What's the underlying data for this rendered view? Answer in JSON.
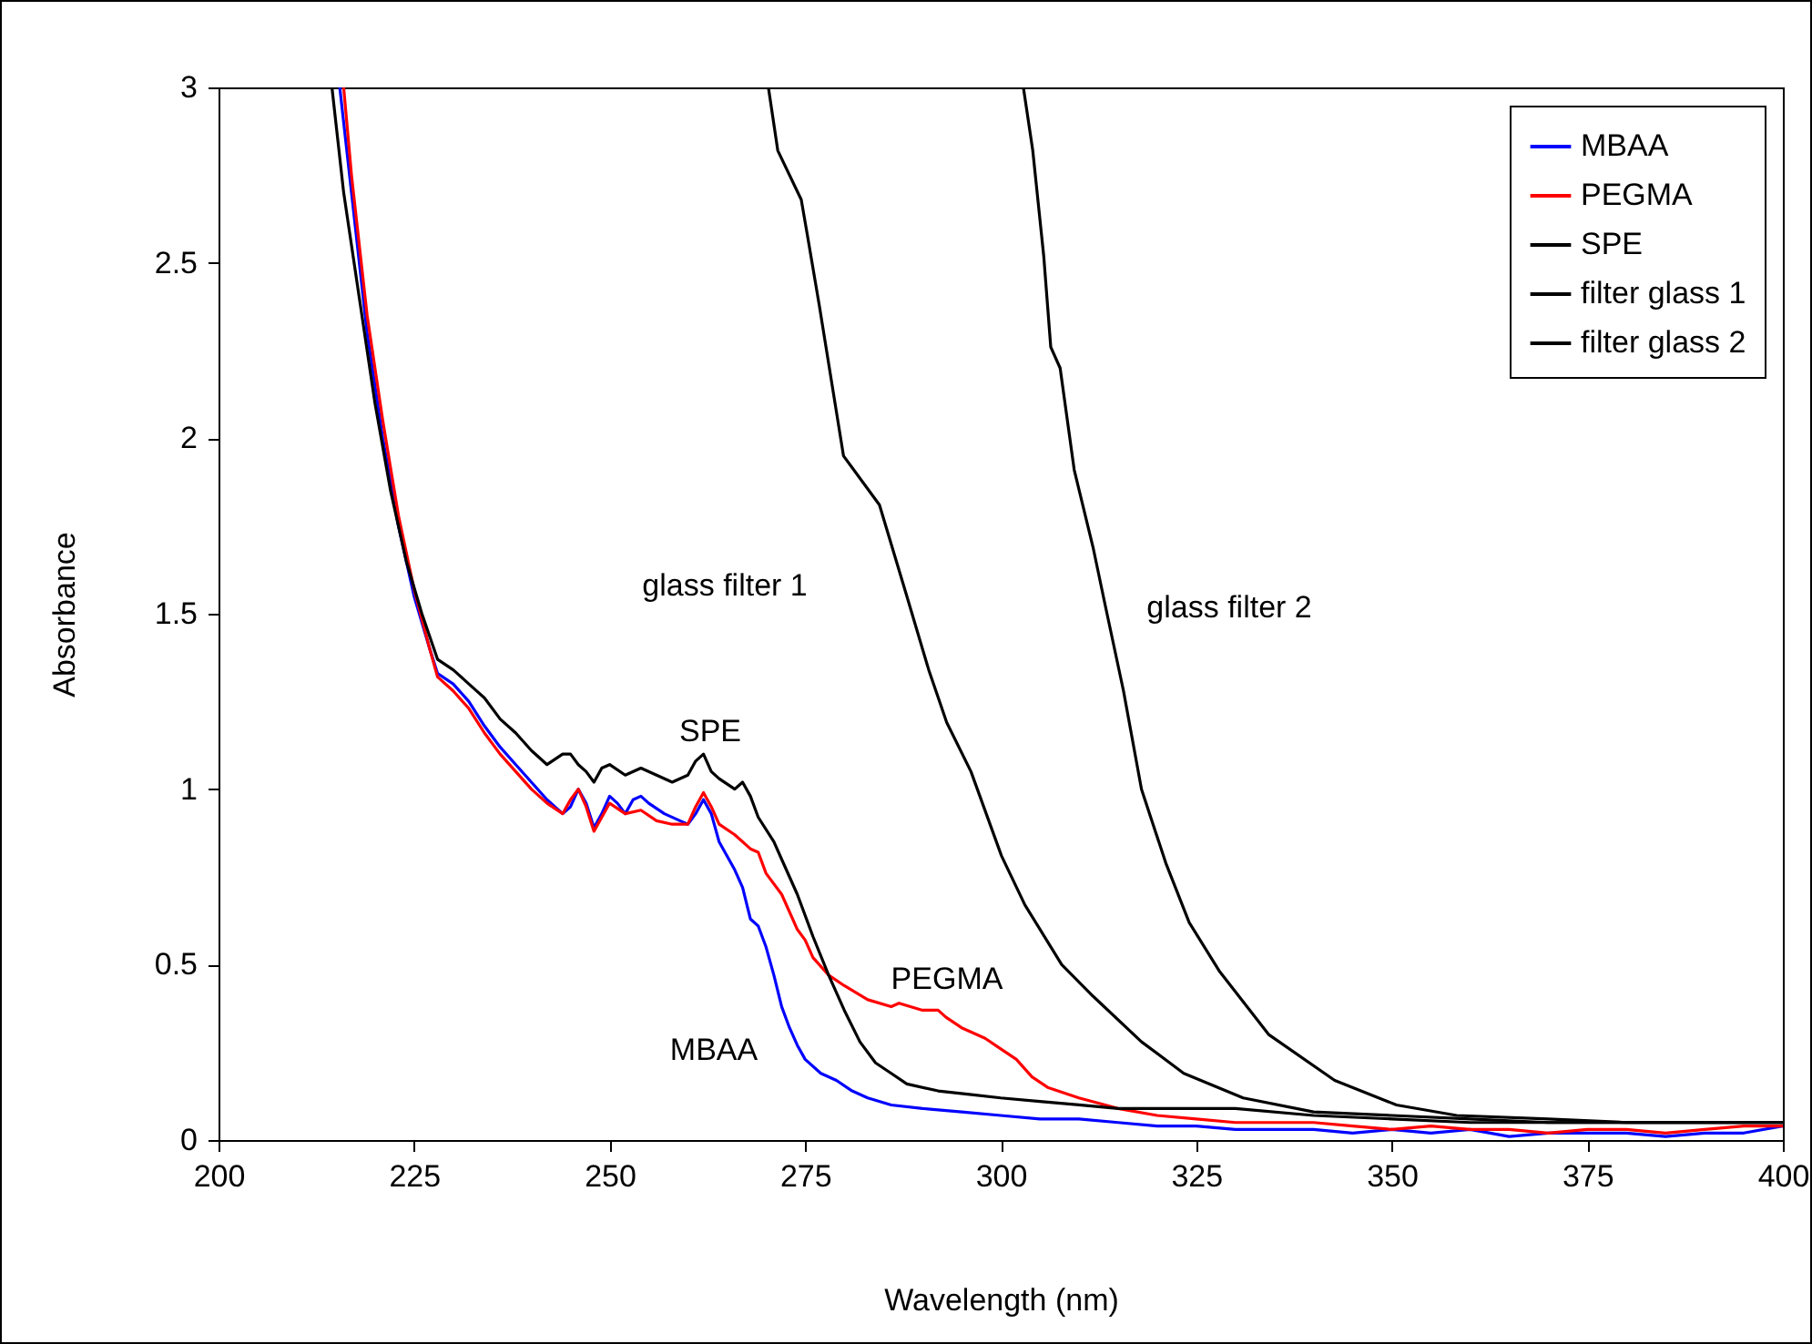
{
  "chart_data": {
    "type": "line",
    "xlabel": "Wavelength (nm)",
    "ylabel": "Absorbance",
    "xlim": [
      200,
      400
    ],
    "ylim": [
      0,
      3
    ],
    "xticks": [
      200,
      225,
      250,
      275,
      300,
      325,
      350,
      375,
      400
    ],
    "yticks": [
      0,
      0.5,
      1,
      1.5,
      2,
      2.5,
      3
    ],
    "grid": false,
    "legend": "top right",
    "marker": "none",
    "line_style": "solid",
    "series": [
      {
        "name": "MBAA",
        "color": "#0000ff",
        "x": [
          215.5,
          217,
          219,
          221,
          223,
          225,
          227,
          228,
          230,
          232,
          234,
          236,
          238,
          240,
          242,
          244,
          245,
          246,
          247,
          248,
          249,
          250,
          251,
          252,
          253,
          254,
          255,
          257,
          259,
          260,
          261,
          262,
          263,
          264,
          266,
          267,
          268,
          269,
          270,
          271,
          272,
          273,
          274,
          275,
          277,
          279,
          281,
          283,
          286,
          290,
          295,
          300,
          305,
          310,
          315,
          320,
          325,
          330,
          335,
          340,
          345,
          350,
          355,
          360,
          365,
          370,
          375,
          380,
          385,
          390,
          395,
          400
        ],
        "values": [
          3,
          2.7,
          2.3,
          2,
          1.75,
          1.55,
          1.4,
          1.33,
          1.3,
          1.25,
          1.18,
          1.12,
          1.07,
          1.02,
          0.97,
          0.93,
          0.95,
          1,
          0.96,
          0.89,
          0.93,
          0.98,
          0.96,
          0.93,
          0.97,
          0.98,
          0.96,
          0.93,
          0.91,
          0.9,
          0.93,
          0.97,
          0.93,
          0.85,
          0.77,
          0.72,
          0.63,
          0.61,
          0.55,
          0.47,
          0.38,
          0.32,
          0.27,
          0.23,
          0.19,
          0.17,
          0.14,
          0.12,
          0.1,
          0.09,
          0.08,
          0.07,
          0.06,
          0.06,
          0.05,
          0.04,
          0.04,
          0.03,
          0.03,
          0.03,
          0.02,
          0.03,
          0.02,
          0.03,
          0.01,
          0.02,
          0.02,
          0.02,
          0.01,
          0.02,
          0.02,
          0.04
        ]
      },
      {
        "name": "PEGMA",
        "color": "#ff0000",
        "x": [
          216,
          217,
          219,
          221,
          223,
          225,
          227,
          228,
          230,
          232,
          234,
          236,
          238,
          240,
          242,
          244,
          245,
          246,
          247,
          248,
          249,
          250,
          252,
          254,
          256,
          258,
          260,
          261,
          262,
          263,
          264,
          266,
          268,
          269,
          270,
          272,
          274,
          275,
          276,
          278,
          280,
          283,
          286,
          287,
          290,
          292,
          293,
          295,
          298,
          300,
          302,
          304,
          306,
          310,
          315,
          320,
          325,
          330,
          335,
          340,
          345,
          350,
          355,
          360,
          365,
          370,
          375,
          380,
          385,
          390,
          395,
          400
        ],
        "values": [
          3,
          2.75,
          2.35,
          2.05,
          1.78,
          1.57,
          1.4,
          1.32,
          1.28,
          1.23,
          1.16,
          1.1,
          1.05,
          1.0,
          0.96,
          0.93,
          0.97,
          1.0,
          0.95,
          0.88,
          0.92,
          0.96,
          0.93,
          0.94,
          0.91,
          0.9,
          0.9,
          0.95,
          0.99,
          0.95,
          0.9,
          0.87,
          0.83,
          0.82,
          0.76,
          0.7,
          0.6,
          0.57,
          0.52,
          0.47,
          0.44,
          0.4,
          0.38,
          0.39,
          0.37,
          0.37,
          0.35,
          0.32,
          0.29,
          0.26,
          0.23,
          0.18,
          0.15,
          0.12,
          0.09,
          0.07,
          0.06,
          0.05,
          0.05,
          0.05,
          0.04,
          0.03,
          0.04,
          0.03,
          0.03,
          0.02,
          0.03,
          0.03,
          0.02,
          0.03,
          0.04,
          0.04
        ]
      },
      {
        "name": "SPE",
        "color": "#000000",
        "x": [
          214.5,
          216,
          218,
          220,
          222,
          224,
          226,
          228,
          230,
          232,
          234,
          236,
          238,
          240,
          242,
          244,
          245,
          246,
          247,
          248,
          249,
          250,
          252,
          254,
          256,
          258,
          260,
          261,
          262,
          263,
          264,
          266,
          267,
          268,
          269,
          271,
          272,
          274,
          276,
          278,
          280,
          282,
          284,
          286,
          288,
          292,
          296,
          300,
          305,
          310,
          315,
          320,
          325,
          330,
          340,
          350,
          360,
          370,
          380,
          390,
          400
        ],
        "values": [
          3,
          2.7,
          2.4,
          2.1,
          1.85,
          1.65,
          1.5,
          1.37,
          1.34,
          1.3,
          1.26,
          1.2,
          1.16,
          1.11,
          1.07,
          1.1,
          1.1,
          1.07,
          1.05,
          1.02,
          1.06,
          1.07,
          1.04,
          1.06,
          1.04,
          1.02,
          1.04,
          1.08,
          1.1,
          1.05,
          1.03,
          1.0,
          1.02,
          0.98,
          0.92,
          0.85,
          0.8,
          0.7,
          0.58,
          0.47,
          0.37,
          0.28,
          0.22,
          0.19,
          0.16,
          0.14,
          0.13,
          0.12,
          0.11,
          0.1,
          0.09,
          0.09,
          0.09,
          0.09,
          0.07,
          0.06,
          0.05,
          0.05,
          0.05,
          0.05,
          0.05
        ]
      },
      {
        "name": "filter glass 1",
        "color": "#000000",
        "x": [
          270.3,
          271.5,
          274.5,
          275.2,
          276.8,
          279.9,
          284.5,
          288,
          290.8,
          293.1,
          296.2,
          300.1,
          303.1,
          307.8,
          311.8,
          318,
          323.4,
          331,
          340,
          350,
          360,
          370,
          380,
          390,
          400
        ],
        "values": [
          3,
          2.82,
          2.68,
          2.59,
          2.38,
          1.95,
          1.81,
          1.55,
          1.34,
          1.19,
          1.05,
          0.81,
          0.67,
          0.5,
          0.41,
          0.28,
          0.19,
          0.12,
          0.08,
          0.07,
          0.06,
          0.05,
          0.05,
          0.05,
          0.05
        ]
      },
      {
        "name": "filter glass 2",
        "color": "#000000",
        "x": [
          302.9,
          304.1,
          305.5,
          306.4,
          307.6,
          309.4,
          311.8,
          313.4,
          315.7,
          318,
          321.1,
          324.1,
          328,
          334.3,
          342.7,
          350.6,
          358.3,
          370,
          380,
          390,
          400
        ],
        "values": [
          3,
          2.82,
          2.52,
          2.26,
          2.2,
          1.91,
          1.69,
          1.52,
          1.28,
          1.0,
          0.79,
          0.62,
          0.48,
          0.3,
          0.17,
          0.1,
          0.07,
          0.06,
          0.05,
          0.05,
          0.05
        ]
      }
    ],
    "annotations": [
      "glass filter 1",
      "glass filter 2",
      "SPE",
      "PEGMA",
      "MBAA"
    ]
  }
}
